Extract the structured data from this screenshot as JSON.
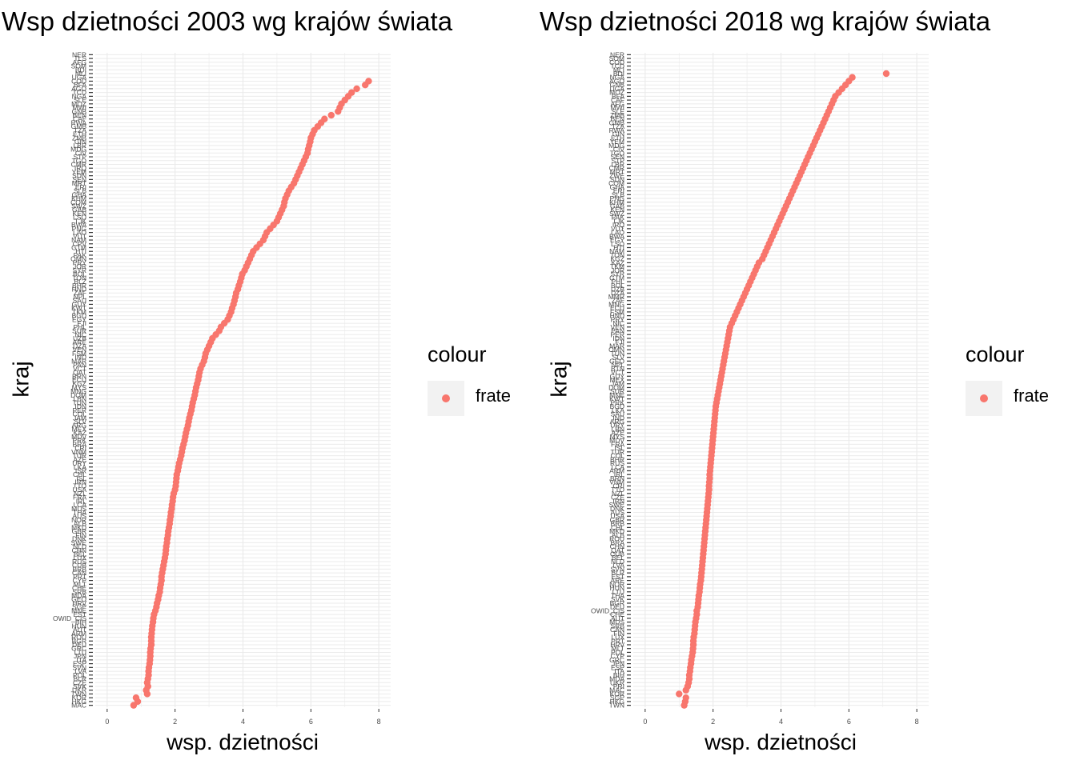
{
  "legend": {
    "title": "colour",
    "label": "frate",
    "color": "#f8766d"
  },
  "chart_data": [
    {
      "type": "scatter",
      "title": "Wsp dzietności 2003 wg krajów świata",
      "xlabel": "wsp. dzietności",
      "ylabel": "kraj",
      "xlim": [
        -0.35,
        8.35
      ],
      "xticks": [
        0,
        2,
        4,
        6,
        8
      ],
      "grid": true,
      "legend_position": "right",
      "point_color": "#f8766d",
      "categories": [
        "MAC",
        "HKG",
        "KOR",
        "TWN",
        "UKR",
        "SVK",
        "CZE",
        "BLR",
        "POL",
        "LVA",
        "SVN",
        "ESP",
        "ITA",
        "JPN",
        "LTU",
        "GRC",
        "DEU",
        "BGR",
        "ROU",
        "ARM",
        "AUT",
        "HUN",
        "BIH",
        "OWID_CIS",
        "EST",
        "MNE",
        "SGP",
        "HRV",
        "GEO",
        "MDA",
        "SRB",
        "CHE",
        "MLT",
        "CYP",
        "PRT",
        "CAN",
        "BRB",
        "CUB",
        "RUS",
        "LUX",
        "BEL",
        "CHN",
        "NLD",
        "SWE",
        "DNK",
        "FIN",
        "GBR",
        "MKD",
        "ALB",
        "NOR",
        "AUS",
        "THA",
        "MUS",
        "LCA",
        "IRL",
        "FRA",
        "NZL",
        "USA",
        "TTO",
        "IRN",
        "ISL",
        "CHL",
        "ISR",
        "LKA",
        "URY",
        "AZE",
        "TUR",
        "VNM",
        "CRI",
        "BRA",
        "PRK",
        "MDV",
        "KAZ",
        "MEX",
        "ARG",
        "SLV",
        "JAM",
        "COL",
        "PER",
        "IDN",
        "TUN",
        "LBN",
        "DOM",
        "MNG",
        "MYS",
        "KGZ",
        "ECU",
        "BRN",
        "QAT",
        "VCT",
        "PAN",
        "MAR",
        "IND",
        "FSM",
        "VEN",
        "DZA",
        "ARE",
        "UZB",
        "NIC",
        "SUR",
        "PHL",
        "FJI",
        "EGY",
        "BGD",
        "TKM",
        "KWT",
        "GUY",
        "SAU",
        "NPL",
        "ZAF",
        "HND",
        "BHR",
        "BLZ",
        "TON",
        "BOL",
        "SYR",
        "JOR",
        "PRY",
        "OMN",
        "PAK",
        "HTI",
        "GTM",
        "CPV",
        "NAM",
        "VUT",
        "LAO",
        "PNG",
        "BWA",
        "TJK",
        "LSO",
        "KEN",
        "GAB",
        "SWZ",
        "COM",
        "KHM",
        "GHA",
        "SLB",
        "ERI",
        "MRT",
        "SEN",
        "SDN",
        "YEM",
        "IRQ",
        "CMR",
        "TGO",
        "STP",
        "CIV",
        "MDG",
        "LBR",
        "GIN",
        "ZMB",
        "ETH",
        "TZA",
        "GMB",
        "RWA",
        "CAF",
        "BEN",
        "GNB",
        "MWI",
        "MOZ",
        "SLE",
        "NGA",
        "TCD",
        "AGO",
        "BFA",
        "COD",
        "UGA",
        "MLI",
        "BDI",
        "SOM",
        "AFG",
        "TLS",
        "NER"
      ],
      "x": [
        0.78,
        0.9,
        0.85,
        1.18,
        1.15,
        1.2,
        1.18,
        1.2,
        1.22,
        1.22,
        1.23,
        1.25,
        1.26,
        1.27,
        1.27,
        1.28,
        1.3,
        1.3,
        1.3,
        1.31,
        1.32,
        1.33,
        1.35,
        1.36,
        1.38,
        1.42,
        1.45,
        1.47,
        1.5,
        1.52,
        1.55,
        1.56,
        1.58,
        1.6,
        1.6,
        1.62,
        1.64,
        1.66,
        1.68,
        1.7,
        1.72,
        1.73,
        1.74,
        1.76,
        1.77,
        1.79,
        1.8,
        1.82,
        1.84,
        1.85,
        1.87,
        1.88,
        1.9,
        1.91,
        1.93,
        1.94,
        1.96,
        2.0,
        2.02,
        2.03,
        2.04,
        2.05,
        2.08,
        2.1,
        2.12,
        2.15,
        2.18,
        2.2,
        2.22,
        2.25,
        2.28,
        2.3,
        2.32,
        2.35,
        2.38,
        2.4,
        2.42,
        2.45,
        2.48,
        2.5,
        2.52,
        2.55,
        2.58,
        2.6,
        2.62,
        2.65,
        2.68,
        2.7,
        2.72,
        2.75,
        2.8,
        2.85,
        2.88,
        2.9,
        2.95,
        3.0,
        3.05,
        3.1,
        3.2,
        3.3,
        3.35,
        3.45,
        3.55,
        3.6,
        3.65,
        3.68,
        3.72,
        3.75,
        3.78,
        3.8,
        3.85,
        3.88,
        3.92,
        3.95,
        3.98,
        4.05,
        4.1,
        4.15,
        4.2,
        4.25,
        4.3,
        4.4,
        4.5,
        4.6,
        4.65,
        4.7,
        4.8,
        4.9,
        5.0,
        5.05,
        5.1,
        5.15,
        5.2,
        5.22,
        5.25,
        5.3,
        5.35,
        5.42,
        5.5,
        5.55,
        5.6,
        5.65,
        5.7,
        5.75,
        5.8,
        5.85,
        5.9,
        5.92,
        5.95,
        5.98,
        6.0,
        6.05,
        6.1,
        6.2,
        6.3,
        6.4,
        6.6,
        6.8,
        6.85,
        6.9,
        7.0,
        7.1,
        7.2,
        7.35,
        7.6,
        7.7
      ]
    },
    {
      "type": "scatter",
      "title": "Wsp dzietności 2018 wg krajów świata",
      "xlabel": "wsp. dzietności",
      "ylabel": "kraj",
      "xlim": [
        -0.35,
        8.35
      ],
      "xticks": [
        0,
        2,
        4,
        6,
        8
      ],
      "grid": true,
      "legend_position": "right",
      "point_color": "#f8766d",
      "categories": [
        "TWN",
        "HKG",
        "SGP",
        "KOR",
        "MAC",
        "PRI",
        "UKR",
        "MDA",
        "BIH",
        "ITA",
        "ESP",
        "JPN",
        "GRC",
        "CYP",
        "POL",
        "MLT",
        "HRV",
        "PRT",
        "LUX",
        "FIN",
        "CAN",
        "SRB",
        "MUS",
        "AUT",
        "CHE",
        "OWID_CIS",
        "DEU",
        "BGR",
        "SVK",
        "THA",
        "LTU",
        "HUN",
        "NOR",
        "ARE",
        "EST",
        "BLR",
        "SVN",
        "LVA",
        "NLD",
        "BEL",
        "CUB",
        "QAT",
        "CHN",
        "BRA",
        "ROU",
        "ALB",
        "MKD",
        "CHL",
        "BRB",
        "GBR",
        "USA",
        "AUS",
        "DNK",
        "SWE",
        "IRN",
        "CZE",
        "NZL",
        "TTO",
        "CRI",
        "VNM",
        "BRN",
        "IRL",
        "ARM",
        "LCA",
        "RUS",
        "BHR",
        "COL",
        "TUR",
        "ISL",
        "FRA",
        "MDV",
        "MYS",
        "AZE",
        "LBN",
        "URY",
        "ARG",
        "IND",
        "SAU",
        "LKA",
        "BGD",
        "PRK",
        "KWT",
        "MNE",
        "SUR",
        "DOM",
        "JAM",
        "MEX",
        "GUY",
        "VCT",
        "BTN",
        "NPL",
        "GEO",
        "SLV",
        "TUN",
        "OMN",
        "MAR",
        "FJI",
        "IDN",
        "PER",
        "PAN",
        "VEN",
        "NIC",
        "PRY",
        "HND",
        "FSM",
        "ECU",
        "MNG",
        "ZAF",
        "MMR",
        "DZA",
        "UZB",
        "BOL",
        "PHL",
        "GTM",
        "SYR",
        "JOR",
        "TKM",
        "KAZ",
        "KGZ",
        "TON",
        "NAM",
        "HTI",
        "LSO",
        "EGY",
        "BWA",
        "LAO",
        "VUT",
        "IRQ",
        "TJK",
        "PAK",
        "SWZ",
        "KEN",
        "GAB",
        "KHM",
        "PNG",
        "SLB",
        "ERI",
        "GHA",
        "COM",
        "SDN",
        "ZWE",
        "MRT",
        "CMR",
        "LBR",
        "STP",
        "SEN",
        "TGO",
        "CIV",
        "MDG",
        "YEM",
        "ETH",
        "GIN",
        "RWA",
        "TZA",
        "GMB",
        "BEN",
        "ZMB",
        "SLE",
        "MWI",
        "AFG",
        "CAF",
        "BFA",
        "MOZ",
        "UGA",
        "GNB",
        "AGO",
        "NGA",
        "BDI",
        "MLI",
        "TCD",
        "COD",
        "SOM",
        "NER"
      ],
      "x": [
        1.15,
        1.18,
        1.2,
        1.0,
        1.2,
        1.25,
        1.28,
        1.3,
        1.3,
        1.32,
        1.33,
        1.35,
        1.36,
        1.38,
        1.4,
        1.41,
        1.42,
        1.42,
        1.43,
        1.45,
        1.46,
        1.47,
        1.48,
        1.5,
        1.52,
        1.52,
        1.55,
        1.56,
        1.57,
        1.58,
        1.6,
        1.61,
        1.62,
        1.64,
        1.65,
        1.66,
        1.67,
        1.68,
        1.69,
        1.7,
        1.71,
        1.72,
        1.73,
        1.74,
        1.75,
        1.76,
        1.77,
        1.78,
        1.79,
        1.8,
        1.81,
        1.82,
        1.83,
        1.84,
        1.85,
        1.86,
        1.87,
        1.88,
        1.88,
        1.89,
        1.9,
        1.9,
        1.91,
        1.92,
        1.93,
        1.94,
        1.95,
        1.96,
        1.97,
        1.98,
        1.99,
        2.0,
        2.01,
        2.02,
        2.03,
        2.04,
        2.05,
        2.06,
        2.07,
        2.08,
        2.1,
        2.12,
        2.14,
        2.16,
        2.18,
        2.2,
        2.22,
        2.24,
        2.26,
        2.28,
        2.3,
        2.32,
        2.34,
        2.36,
        2.38,
        2.4,
        2.42,
        2.44,
        2.46,
        2.48,
        2.5,
        2.55,
        2.6,
        2.65,
        2.7,
        2.75,
        2.8,
        2.85,
        2.9,
        2.95,
        3.0,
        3.05,
        3.1,
        3.15,
        3.2,
        3.25,
        3.3,
        3.35,
        3.45,
        3.5,
        3.55,
        3.6,
        3.65,
        3.7,
        3.75,
        3.8,
        3.85,
        3.9,
        3.95,
        4.0,
        4.05,
        4.1,
        4.15,
        4.2,
        4.25,
        4.3,
        4.35,
        4.4,
        4.45,
        4.5,
        4.55,
        4.6,
        4.65,
        4.7,
        4.75,
        4.8,
        4.85,
        4.9,
        4.95,
        5.0,
        5.05,
        5.1,
        5.15,
        5.2,
        5.25,
        5.3,
        5.35,
        5.4,
        5.45,
        5.5,
        5.55,
        5.6,
        5.7,
        5.8,
        5.9,
        6.0,
        6.1,
        7.1
      ]
    }
  ]
}
